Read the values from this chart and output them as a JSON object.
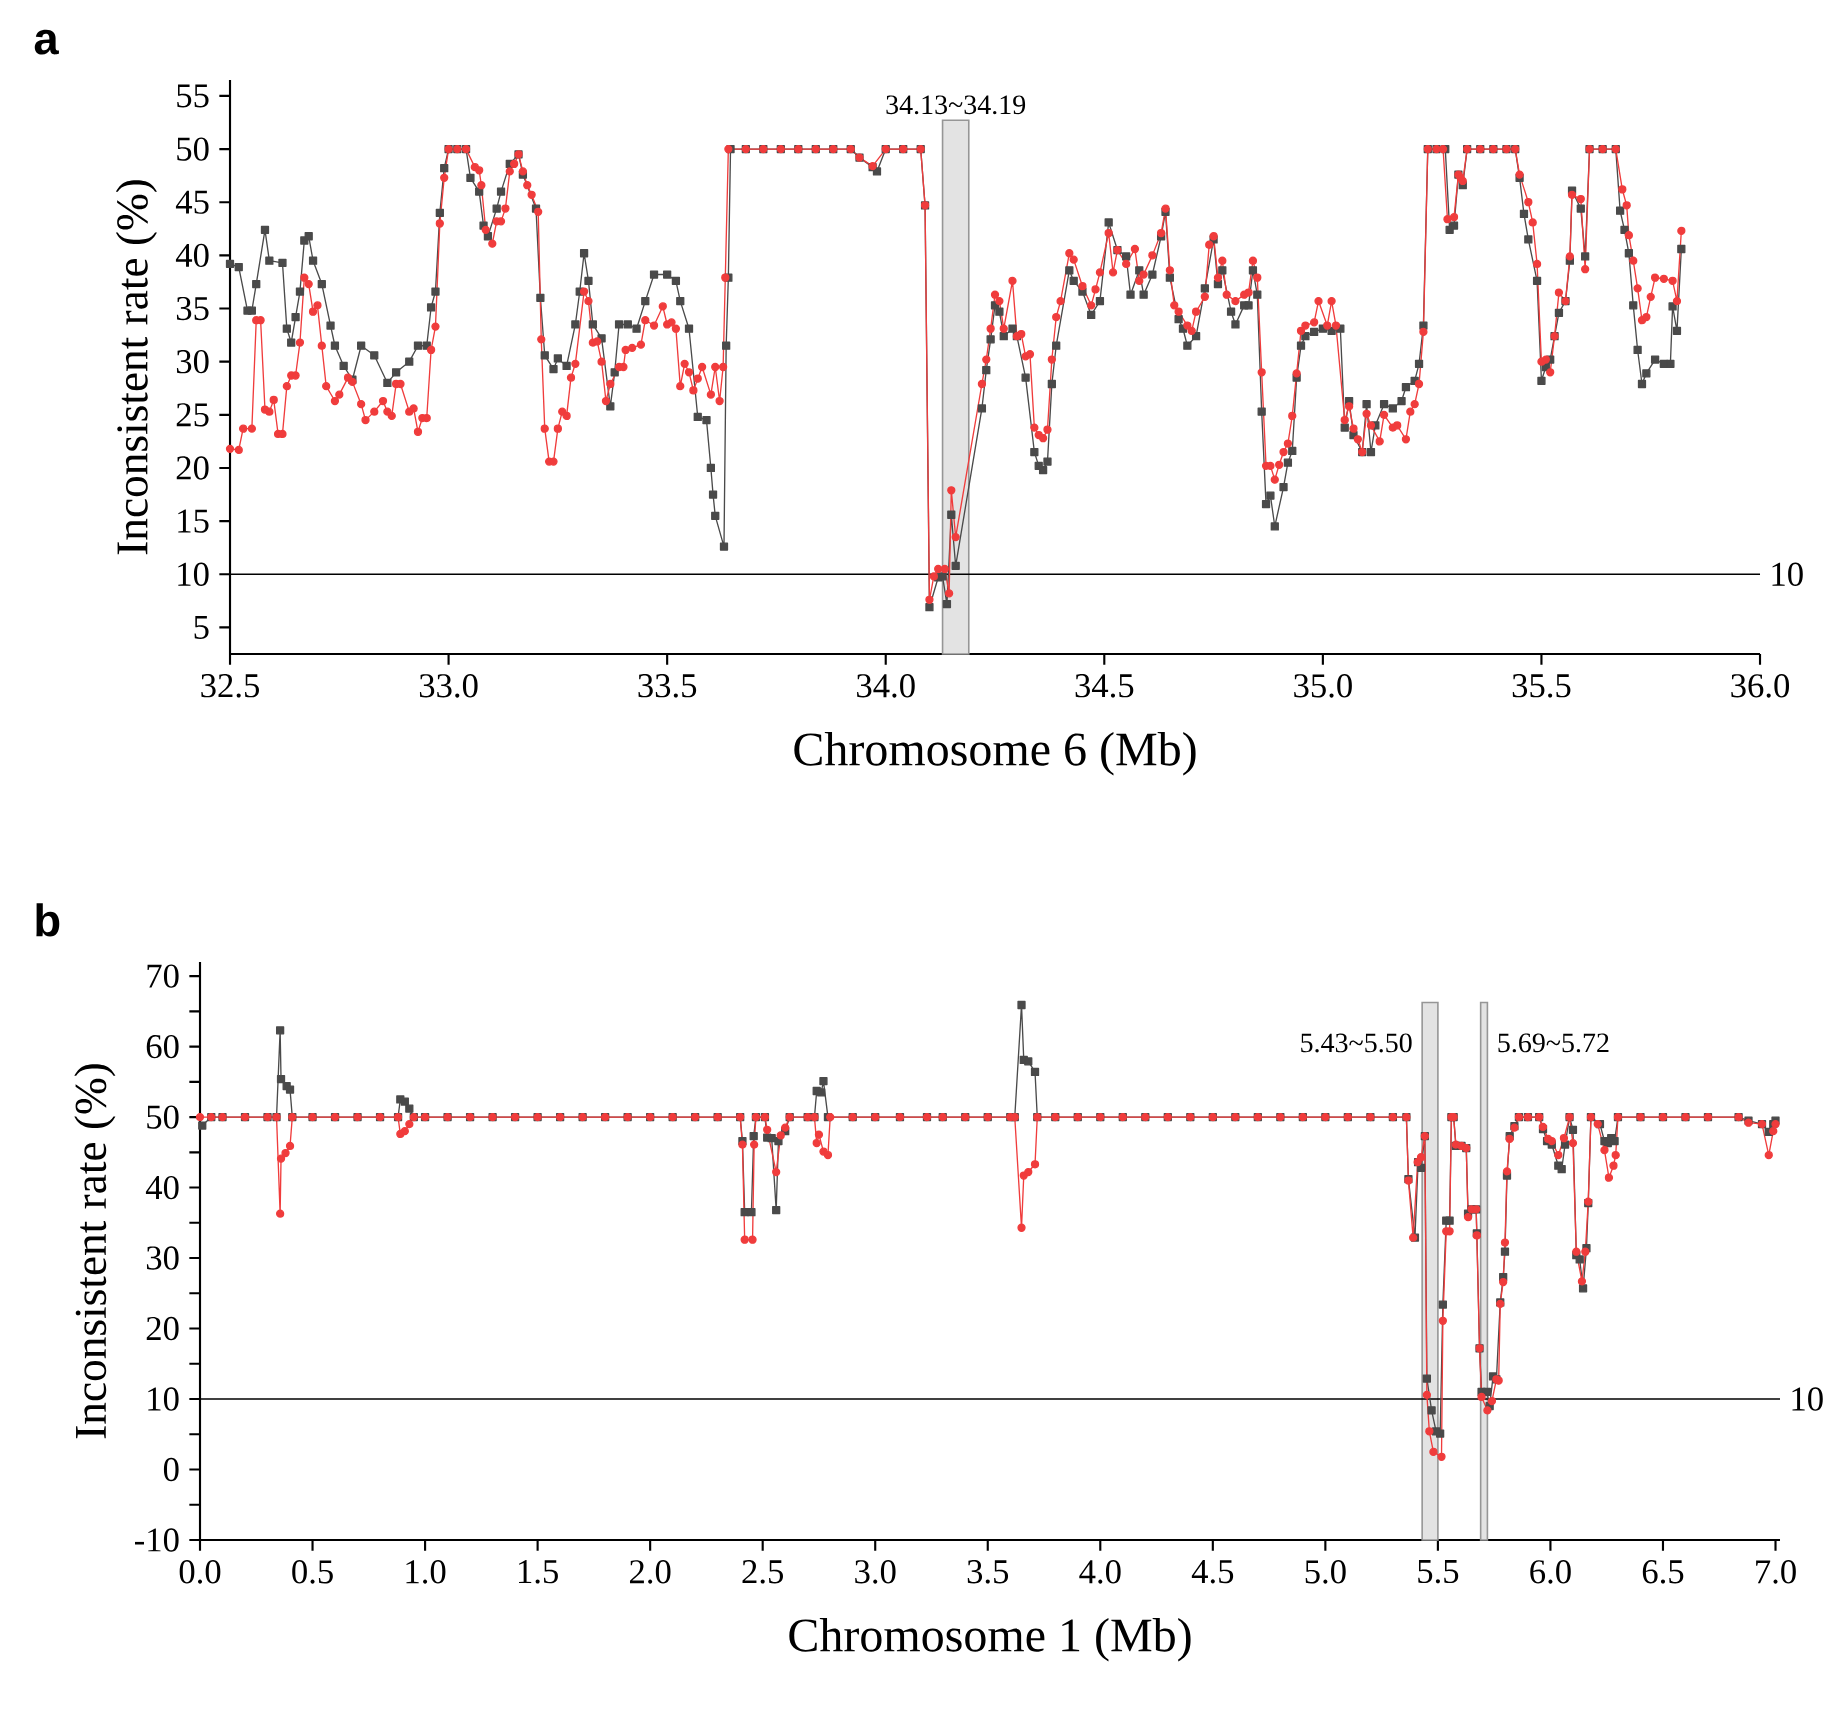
{
  "chart_data": [
    {
      "type": "line",
      "title": "a",
      "xlabel": "Chromosome 6 (Mb)",
      "ylabel": "Inconsistent rate (%)",
      "xlim": [
        32.5,
        36.0
      ],
      "ylim": [
        2.5,
        56.5
      ],
      "xticks": [
        32.5,
        {
          "value": 33,
          "label": "33.0"
        },
        33.5,
        {
          "value": 34,
          "label": "34.0"
        },
        34.5,
        {
          "value": 35,
          "label": "35.0"
        },
        35.5,
        {
          "value": 36,
          "label": "36.0"
        }
      ],
      "yticks": [
        5,
        10,
        15,
        20,
        25,
        30,
        35,
        40,
        45,
        50,
        55
      ],
      "ref_lines": [
        {
          "axis": "y",
          "value": 10,
          "label": "10"
        }
      ],
      "bands": [
        {
          "axis": "x",
          "from": 34.13,
          "to": 34.19,
          "label": "34.13~34.19",
          "color": "#e3e3e3"
        }
      ],
      "series": [
        {
          "color": "#4a4a4a",
          "marker": "square",
          "x": [
            32.5,
            32.52,
            32.54,
            32.55,
            32.56,
            32.58,
            32.59,
            32.62,
            32.63,
            32.64,
            32.65,
            32.66,
            32.67,
            32.68,
            32.69,
            32.71,
            32.73,
            32.74,
            32.76,
            32.78,
            32.8,
            32.83,
            32.86,
            32.88,
            32.91,
            32.93,
            32.95,
            32.96,
            32.97,
            32.98,
            32.99,
            33.0,
            33.02,
            33.04,
            33.05,
            33.07,
            33.08,
            33.09,
            33.11,
            33.12,
            33.14,
            33.16,
            33.17,
            33.2,
            33.21,
            33.22,
            33.24,
            33.25,
            33.27,
            33.29,
            33.3,
            33.31,
            33.32,
            33.33,
            33.35,
            33.37,
            33.38,
            33.39,
            33.41,
            33.43,
            33.45,
            33.47,
            33.5,
            33.52,
            33.53,
            33.55,
            33.57,
            33.59,
            33.6,
            33.605,
            33.61,
            33.63,
            33.635,
            33.64,
            33.645,
            33.68,
            33.72,
            33.76,
            33.8,
            33.84,
            33.88,
            33.92,
            33.94,
            33.97,
            33.98,
            34.0,
            34.04,
            34.08,
            34.09,
            34.1,
            34.12,
            34.13,
            34.14,
            34.15,
            34.16,
            34.22,
            34.23,
            34.24,
            34.25,
            34.26,
            34.27,
            34.29,
            34.3,
            34.32,
            34.34,
            34.35,
            34.36,
            34.37,
            34.38,
            34.39,
            34.42,
            34.43,
            34.45,
            34.47,
            34.49,
            34.51,
            34.53,
            34.55,
            34.56,
            34.58,
            34.59,
            34.61,
            34.63,
            34.64,
            34.65,
            34.67,
            34.68,
            34.69,
            34.71,
            34.73,
            34.75,
            34.76,
            34.77,
            34.79,
            34.8,
            34.82,
            34.83,
            34.84,
            34.85,
            34.86,
            34.87,
            34.88,
            34.89,
            34.91,
            34.92,
            34.93,
            34.94,
            34.95,
            34.96,
            34.98,
            35.0,
            35.02,
            35.04,
            35.05,
            35.06,
            35.07,
            35.09,
            35.1,
            35.11,
            35.12,
            35.14,
            35.16,
            35.18,
            35.19,
            35.21,
            35.22,
            35.23,
            35.24,
            35.26,
            35.28,
            35.29,
            35.3,
            35.31,
            35.32,
            35.33,
            35.36,
            35.39,
            35.42,
            35.44,
            35.45,
            35.46,
            35.47,
            35.49,
            35.5,
            35.51,
            35.52,
            35.53,
            35.54,
            35.555,
            35.565,
            35.57,
            35.59,
            35.6,
            35.61,
            35.64,
            35.67,
            35.68,
            35.69,
            35.7,
            35.71,
            35.72,
            35.73,
            35.74,
            35.76,
            35.78,
            35.795,
            35.8,
            35.81,
            35.82
          ],
          "values": [
            39.2,
            38.9,
            34.8,
            34.8,
            37.3,
            42.4,
            39.5,
            39.3,
            33.1,
            31.8,
            34.2,
            36.6,
            41.4,
            41.8,
            39.5,
            37.3,
            33.4,
            31.5,
            29.6,
            28.3,
            31.5,
            30.6,
            28.0,
            29.0,
            30.0,
            31.5,
            31.5,
            35.1,
            36.6,
            44.0,
            48.2,
            50,
            50,
            50,
            47.3,
            46.0,
            42.8,
            41.8,
            44.4,
            46.0,
            48.6,
            49.5,
            47.6,
            44.4,
            36.0,
            30.6,
            29.3,
            30.3,
            29.6,
            33.5,
            36.6,
            40.2,
            37.6,
            33.5,
            32.2,
            25.8,
            29.0,
            33.5,
            33.5,
            33.1,
            35.7,
            38.2,
            38.2,
            37.6,
            35.7,
            33.1,
            24.8,
            24.5,
            20.0,
            17.5,
            15.5,
            12.6,
            31.5,
            37.9,
            50,
            50,
            50,
            50,
            50,
            50,
            50,
            50,
            49.2,
            48.3,
            47.9,
            50,
            50,
            50,
            44.7,
            6.9,
            9.7,
            9.8,
            7.2,
            15.6,
            10.8,
            25.6,
            29.2,
            32.1,
            35.3,
            34.7,
            32.4,
            33.1,
            32.4,
            28.5,
            21.5,
            20.2,
            19.8,
            20.6,
            27.9,
            31.5,
            38.6,
            37.6,
            36.6,
            34.4,
            35.7,
            43.1,
            40.5,
            39.9,
            36.3,
            38.6,
            36.3,
            38.2,
            41.8,
            44.1,
            37.9,
            34.0,
            33.1,
            31.5,
            32.4,
            36.9,
            41.5,
            37.3,
            38.6,
            34.7,
            33.5,
            35.3,
            35.3,
            38.6,
            36.3,
            25.3,
            16.6,
            17.4,
            14.5,
            18.2,
            20.5,
            21.6,
            28.5,
            31.5,
            32.4,
            32.8,
            33.1,
            32.9,
            33.1,
            23.8,
            26.3,
            23.1,
            21.5,
            26.0,
            21.5,
            24.0,
            26.0,
            25.6,
            26.3,
            27.6,
            28.2,
            29.8,
            33.4,
            50,
            50,
            50,
            42.4,
            42.8,
            47.6,
            46.6,
            50,
            50,
            50,
            50,
            50,
            47.3,
            43.9,
            41.5,
            37.6,
            28.2,
            29.5,
            30.2,
            32.4,
            34.6,
            35.7,
            39.5,
            46.1,
            44.4,
            39.9,
            50,
            50,
            50,
            44.2,
            42.4,
            40.2,
            35.3,
            31.1,
            27.9,
            28.9,
            30.2,
            29.8,
            29.8,
            35.2,
            32.9,
            40.6
          ]
        },
        {
          "color": "#f03c3c",
          "marker": "circle",
          "x": [
            32.5,
            32.52,
            32.53,
            32.55,
            32.56,
            32.57,
            32.58,
            32.59,
            32.6,
            32.61,
            32.62,
            32.63,
            32.64,
            32.65,
            32.66,
            32.67,
            32.68,
            32.69,
            32.7,
            32.71,
            32.72,
            32.74,
            32.75,
            32.77,
            32.78,
            32.8,
            32.81,
            32.83,
            32.85,
            32.86,
            32.87,
            32.88,
            32.89,
            32.91,
            32.92,
            32.93,
            32.94,
            32.95,
            32.96,
            32.97,
            32.98,
            32.99,
            33.0,
            33.02,
            33.04,
            33.06,
            33.07,
            33.075,
            33.085,
            33.1,
            33.11,
            33.12,
            33.13,
            33.14,
            33.15,
            33.16,
            33.17,
            33.18,
            33.19,
            33.205,
            33.212,
            33.22,
            33.23,
            33.24,
            33.25,
            33.26,
            33.27,
            33.28,
            33.29,
            33.31,
            33.32,
            33.33,
            33.34,
            33.35,
            33.36,
            33.37,
            33.39,
            33.4,
            33.405,
            33.42,
            33.44,
            33.45,
            33.47,
            33.49,
            33.5,
            33.51,
            33.52,
            33.53,
            33.54,
            33.55,
            33.56,
            33.57,
            33.58,
            33.6,
            33.61,
            33.62,
            33.628,
            33.633,
            33.64,
            33.68,
            33.72,
            33.76,
            33.8,
            33.84,
            33.88,
            33.92,
            33.94,
            33.97,
            34.0,
            34.04,
            34.08,
            34.09,
            34.1,
            34.11,
            34.12,
            34.135,
            34.145,
            34.15,
            34.16,
            34.22,
            34.23,
            34.24,
            34.25,
            34.26,
            34.27,
            34.29,
            34.3,
            34.31,
            34.32,
            34.33,
            34.34,
            34.35,
            34.36,
            34.37,
            34.38,
            34.39,
            34.4,
            34.42,
            34.43,
            34.45,
            34.47,
            34.48,
            34.49,
            34.51,
            34.52,
            34.53,
            34.55,
            34.57,
            34.58,
            34.59,
            34.61,
            34.63,
            34.64,
            34.65,
            34.66,
            34.67,
            34.69,
            34.7,
            34.71,
            34.73,
            34.74,
            34.75,
            34.76,
            34.77,
            34.78,
            34.8,
            34.82,
            34.83,
            34.84,
            34.85,
            34.86,
            34.87,
            34.88,
            34.89,
            34.9,
            34.91,
            34.92,
            34.93,
            34.94,
            34.95,
            34.96,
            34.98,
            34.99,
            35.01,
            35.02,
            35.03,
            35.05,
            35.06,
            35.07,
            35.08,
            35.09,
            35.1,
            35.11,
            35.13,
            35.14,
            35.16,
            35.17,
            35.19,
            35.2,
            35.21,
            35.22,
            35.23,
            35.24,
            35.26,
            35.275,
            35.285,
            35.3,
            35.31,
            35.315,
            35.32,
            35.33,
            35.36,
            35.39,
            35.42,
            35.44,
            35.45,
            35.47,
            35.48,
            35.49,
            35.5,
            35.51,
            35.52,
            35.53,
            35.54,
            35.555,
            35.565,
            35.57,
            35.59,
            35.6,
            35.61,
            35.64,
            35.67,
            35.685,
            35.695,
            35.7,
            35.71,
            35.72,
            35.73,
            35.74,
            35.75,
            35.76,
            35.78,
            35.8,
            35.81,
            35.82
          ],
          "values": [
            21.8,
            21.7,
            23.7,
            23.7,
            33.9,
            33.9,
            25.5,
            25.3,
            26.4,
            23.2,
            23.2,
            27.7,
            28.7,
            28.7,
            31.8,
            37.9,
            37.3,
            34.7,
            35.3,
            31.5,
            27.7,
            26.3,
            26.9,
            28.5,
            28.1,
            26.0,
            24.5,
            25.3,
            26.3,
            25.3,
            24.9,
            27.9,
            27.9,
            25.3,
            25.6,
            23.4,
            24.7,
            24.7,
            31.1,
            33.3,
            43.0,
            47.3,
            50,
            50,
            50,
            48.3,
            48.0,
            46.6,
            42.4,
            41.1,
            43.2,
            43.2,
            44.4,
            47.9,
            48.6,
            49.5,
            47.9,
            46.6,
            45.7,
            44.1,
            32.1,
            23.7,
            20.6,
            20.6,
            23.7,
            25.3,
            24.9,
            28.5,
            29.8,
            36.6,
            35.7,
            31.8,
            31.9,
            30.0,
            26.3,
            27.9,
            29.5,
            29.5,
            31.1,
            31.3,
            31.6,
            33.9,
            33.4,
            35.2,
            33.5,
            33.7,
            33.1,
            27.7,
            29.8,
            29.0,
            27.3,
            28.4,
            29.5,
            26.9,
            29.5,
            26.3,
            29.5,
            37.9,
            50,
            50,
            50,
            50,
            50,
            50,
            50,
            50,
            49.2,
            48.4,
            50,
            50,
            50,
            44.7,
            7.6,
            9.8,
            10.5,
            10.5,
            8.2,
            17.9,
            13.5,
            27.9,
            30.2,
            33.1,
            36.3,
            35.7,
            33.1,
            37.6,
            32.4,
            32.6,
            30.5,
            30.7,
            23.8,
            23.1,
            22.8,
            23.6,
            30.2,
            34.2,
            35.7,
            40.2,
            39.6,
            37.1,
            35.3,
            36.8,
            38.4,
            42.1,
            38.4,
            40.5,
            39.2,
            40.6,
            37.6,
            38.2,
            40.0,
            42.1,
            44.4,
            38.6,
            35.3,
            34.7,
            33.4,
            32.9,
            34.7,
            36.1,
            41.0,
            41.8,
            37.9,
            39.5,
            36.3,
            35.7,
            36.3,
            36.5,
            39.5,
            37.9,
            29.0,
            20.2,
            20.2,
            18.9,
            20.3,
            21.5,
            22.3,
            24.9,
            28.9,
            32.9,
            33.4,
            33.7,
            35.7,
            33.4,
            35.7,
            33.4,
            24.5,
            25.8,
            23.7,
            22.7,
            21.5,
            25.1,
            24.0,
            22.5,
            25.0,
            23.8,
            24.0,
            22.7,
            25.3,
            26.0,
            27.9,
            32.8,
            50,
            50,
            50,
            43.4,
            43.6,
            47.6,
            47.3,
            47.0,
            50,
            50,
            50,
            50,
            50,
            47.6,
            45.0,
            43.1,
            39.2,
            30.0,
            30.2,
            29.0,
            32.4,
            36.5,
            35.7,
            39.9,
            45.7,
            45.3,
            38.7,
            50,
            50,
            50,
            46.2,
            44.7,
            41.9,
            39.5,
            36.9,
            33.9,
            34.2,
            36.1,
            37.9,
            37.8,
            37.6,
            35.7,
            42.3
          ]
        }
      ]
    },
    {
      "type": "line",
      "title": "b",
      "xlabel": "Chromosome 1 (Mb)",
      "ylabel": "Inconsistent rate (%)",
      "xlim": [
        0,
        7.02
      ],
      "ylim": [
        -10,
        72
      ],
      "xticks": [
        {
          "value": 0,
          "label": "0.0"
        },
        0.5,
        {
          "value": 1,
          "label": "1.0"
        },
        1.5,
        {
          "value": 2,
          "label": "2.0"
        },
        2.5,
        {
          "value": 3,
          "label": "3.0"
        },
        3.5,
        {
          "value": 4,
          "label": "4.0"
        },
        4.5,
        {
          "value": 5,
          "label": "5.0"
        },
        5.5,
        {
          "value": 6,
          "label": "6.0"
        },
        6.5,
        {
          "value": 7,
          "label": "7.0"
        }
      ],
      "yticks": [
        -10,
        {
          "value": -5,
          "label": null
        },
        0,
        {
          "value": 5,
          "label": null
        },
        10,
        {
          "value": 15,
          "label": null
        },
        20,
        {
          "value": 25,
          "label": null
        },
        30,
        {
          "value": 35,
          "label": null
        },
        40,
        {
          "value": 45,
          "label": null
        },
        50,
        {
          "value": 55,
          "label": null
        },
        60,
        {
          "value": 65,
          "label": null
        },
        70
      ],
      "ref_lines": [
        {
          "axis": "y",
          "value": 10,
          "label": "10"
        }
      ],
      "bands": [
        {
          "axis": "x",
          "from": 5.43,
          "to": 5.5,
          "label": "5.43~5.50",
          "color": "#e3e3e3"
        },
        {
          "axis": "x",
          "from": 5.69,
          "to": 5.72,
          "label": "5.69~5.72",
          "color": "#e3e3e3"
        }
      ],
      "series": [
        {
          "color": "#4a4a4a",
          "marker": "square",
          "x": [
            0.01,
            0.05,
            0.1,
            0.2,
            0.3,
            0.34,
            0.356,
            0.36,
            0.385,
            0.4,
            0.41,
            0.5,
            0.6,
            0.7,
            0.8,
            0.88,
            0.89,
            0.91,
            0.93,
            0.95,
            1.0,
            1.1,
            1.2,
            1.3,
            1.4,
            1.5,
            1.6,
            1.7,
            1.8,
            1.9,
            2.0,
            2.1,
            2.2,
            2.3,
            2.4,
            2.41,
            2.42,
            2.45,
            2.46,
            2.47,
            2.51,
            2.52,
            2.54,
            2.56,
            2.57,
            2.6,
            2.62,
            2.7,
            2.73,
            2.74,
            2.76,
            2.77,
            2.79,
            2.9,
            3.0,
            3.11,
            3.23,
            3.3,
            3.4,
            3.5,
            3.6,
            3.62,
            3.65,
            3.66,
            3.68,
            3.71,
            3.72,
            3.8,
            3.9,
            4.0,
            4.1,
            4.2,
            4.3,
            4.4,
            4.5,
            4.6,
            4.7,
            4.8,
            4.9,
            5.0,
            5.1,
            5.2,
            5.3,
            5.36,
            5.369,
            5.398,
            5.412,
            5.425,
            5.442,
            5.451,
            5.472,
            5.492,
            5.51,
            5.522,
            5.537,
            5.552,
            5.56,
            5.57,
            5.58,
            5.605,
            5.626,
            5.634,
            5.65,
            5.67,
            5.673,
            5.685,
            5.694,
            5.718,
            5.73,
            5.745,
            5.76,
            5.777,
            5.79,
            5.798,
            5.807,
            5.819,
            5.84,
            5.86,
            5.9,
            5.95,
            5.967,
            5.985,
            6.006,
            6.035,
            6.05,
            6.065,
            6.085,
            6.1,
            6.115,
            6.13,
            6.145,
            6.16,
            6.168,
            6.18,
            6.22,
            6.24,
            6.255,
            6.27,
            6.285,
            6.3,
            6.4,
            6.5,
            6.6,
            6.7,
            6.836,
            6.88,
            6.94,
            6.97,
            6.99,
            7.0
          ],
          "values": [
            48.8,
            50,
            50,
            50,
            50,
            50,
            62.3,
            55.4,
            54.4,
            53.9,
            50,
            50,
            50,
            50,
            50,
            50,
            52.5,
            52.2,
            51.2,
            50,
            50,
            50,
            50,
            50,
            50,
            50,
            50,
            50,
            50,
            50,
            50,
            50,
            50,
            50,
            50,
            46.6,
            36.5,
            36.5,
            47.3,
            50,
            50,
            47.1,
            47.0,
            36.8,
            46.6,
            48.0,
            50,
            50,
            50,
            53.7,
            53.5,
            55.1,
            50,
            50,
            50,
            50,
            50,
            50,
            50,
            50,
            50,
            50,
            65.9,
            58.1,
            57.9,
            56.4,
            50,
            50,
            50,
            50,
            50,
            50,
            50,
            50,
            50,
            50,
            50,
            50,
            50,
            50,
            50,
            50,
            50,
            50,
            41.2,
            32.9,
            43.6,
            42.8,
            47.3,
            12.9,
            8.4,
            5.4,
            5.1,
            23.4,
            35.3,
            35.3,
            50,
            50,
            45.9,
            45.9,
            45.6,
            36.3,
            36.9,
            36.9,
            33.5,
            17.2,
            11.0,
            11.0,
            9.0,
            13.2,
            12.8,
            23.7,
            27.3,
            30.9,
            41.7,
            47.3,
            48.7,
            50,
            50,
            50,
            48.3,
            46.6,
            46.1,
            43.1,
            42.6,
            46.1,
            50,
            48.2,
            30.4,
            29.8,
            25.7,
            31.4,
            37.8,
            50,
            49.0,
            46.6,
            46.3,
            47.0,
            46.6,
            50,
            50,
            50,
            50,
            50,
            50,
            49.5,
            49.0,
            47.9,
            49.0,
            49.5
          ]
        },
        {
          "color": "#f03c3c",
          "marker": "circle",
          "x": [
            0.0,
            0.05,
            0.1,
            0.2,
            0.3,
            0.34,
            0.356,
            0.36,
            0.38,
            0.4,
            0.41,
            0.5,
            0.6,
            0.7,
            0.8,
            0.88,
            0.89,
            0.91,
            0.93,
            0.95,
            1.0,
            1.1,
            1.2,
            1.3,
            1.4,
            1.5,
            1.6,
            1.7,
            1.8,
            1.9,
            2.0,
            2.1,
            2.2,
            2.3,
            2.4,
            2.41,
            2.42,
            2.455,
            2.462,
            2.47,
            2.51,
            2.52,
            2.56,
            2.58,
            2.6,
            2.62,
            2.7,
            2.73,
            2.74,
            2.75,
            2.77,
            2.79,
            2.8,
            2.9,
            3.0,
            3.11,
            3.23,
            3.3,
            3.4,
            3.5,
            3.6,
            3.62,
            3.65,
            3.66,
            3.68,
            3.71,
            3.72,
            3.8,
            3.9,
            4.0,
            4.1,
            4.2,
            4.3,
            4.4,
            4.5,
            4.6,
            4.7,
            4.8,
            4.9,
            5.0,
            5.1,
            5.2,
            5.3,
            5.36,
            5.369,
            5.39,
            5.41,
            5.425,
            5.442,
            5.451,
            5.462,
            5.48,
            5.516,
            5.522,
            5.537,
            5.552,
            5.56,
            5.57,
            5.58,
            5.605,
            5.626,
            5.634,
            5.65,
            5.67,
            5.673,
            5.685,
            5.694,
            5.72,
            5.74,
            5.76,
            5.77,
            5.777,
            5.79,
            5.798,
            5.807,
            5.819,
            5.84,
            5.86,
            5.9,
            5.95,
            5.967,
            5.99,
            6.006,
            6.035,
            6.06,
            6.085,
            6.1,
            6.115,
            6.14,
            6.155,
            6.168,
            6.18,
            6.21,
            6.24,
            6.26,
            6.28,
            6.29,
            6.3,
            6.4,
            6.5,
            6.6,
            6.7,
            6.836,
            6.88,
            6.94,
            6.97,
            6.99,
            7.0
          ],
          "values": [
            50,
            50,
            50,
            50,
            50,
            50,
            36.3,
            44.1,
            44.9,
            45.9,
            50,
            50,
            50,
            50,
            50,
            50,
            47.6,
            48.0,
            49.0,
            50,
            50,
            50,
            50,
            50,
            50,
            50,
            50,
            50,
            50,
            50,
            50,
            50,
            50,
            50,
            50,
            46.1,
            32.6,
            32.6,
            46.1,
            50,
            50,
            48.2,
            42.2,
            47.4,
            48.5,
            50,
            50,
            50,
            46.3,
            47.5,
            45.1,
            44.6,
            50,
            50,
            50,
            50,
            50,
            50,
            50,
            50,
            50,
            50,
            34.3,
            41.7,
            42.2,
            43.3,
            50,
            50,
            50,
            50,
            50,
            50,
            50,
            50,
            50,
            50,
            50,
            50,
            50,
            50,
            50,
            50,
            50,
            50,
            41.0,
            32.9,
            43.6,
            44.3,
            47.3,
            10.6,
            5.4,
            2.5,
            1.8,
            21.1,
            33.8,
            33.8,
            50,
            50,
            46.1,
            45.9,
            45.6,
            35.8,
            36.9,
            36.9,
            33.2,
            17.2,
            10.3,
            8.4,
            9.7,
            12.8,
            12.6,
            23.5,
            26.6,
            32.2,
            42.3,
            46.9,
            48.5,
            50,
            50,
            50,
            48.6,
            46.9,
            46.6,
            44.6,
            47.0,
            50,
            46.3,
            30.9,
            26.7,
            30.9,
            38.0,
            50,
            49.0,
            45.3,
            41.4,
            43.1,
            44.6,
            50,
            50,
            50,
            50,
            50,
            50,
            49.2,
            49.0,
            44.6,
            48.0,
            49.0
          ]
        }
      ]
    }
  ]
}
